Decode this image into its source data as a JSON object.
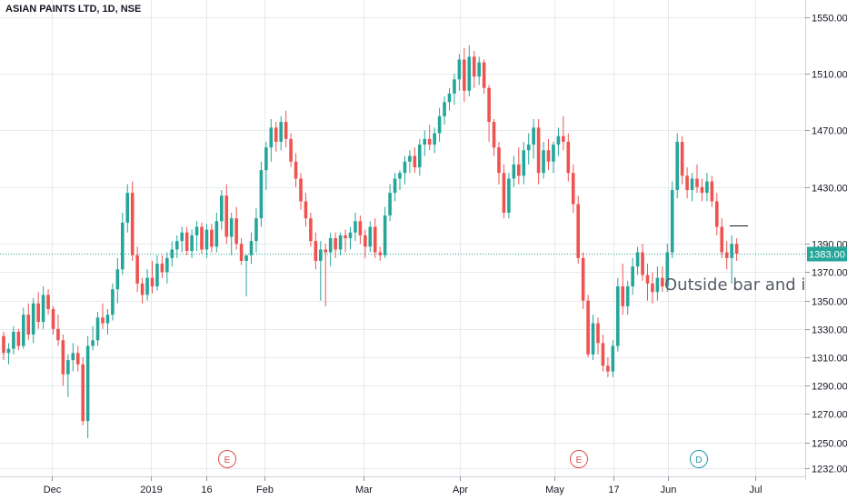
{
  "chart_data": {
    "type": "candlestick",
    "title": "ASIAN PAINTS LTD, 1D, NSE",
    "x_tick_labels": [
      "Dec",
      "2019",
      "16",
      "Feb",
      "Mar",
      "Apr",
      "May",
      "17",
      "Jun",
      "Jul"
    ],
    "y_tick_labels": [
      "1550.00",
      "1510.00",
      "1470.00",
      "1430.00",
      "1390.00",
      "1370.00",
      "1350.00",
      "1330.00",
      "1310.00",
      "1290.00",
      "1270.00",
      "1250.00",
      "1232.00"
    ],
    "ylim": [
      1226,
      1562
    ],
    "last_price": 1383.0,
    "last_price_label": "1383.00",
    "annotation": "Outside bar and inside bar",
    "event_markers": [
      {
        "label": "E",
        "type": "earnings",
        "color": "#e04a4a"
      },
      {
        "label": "E",
        "type": "earnings",
        "color": "#e04a4a"
      },
      {
        "label": "D",
        "type": "dividend",
        "color": "#1e96a8"
      }
    ],
    "colors": {
      "up": "#26a69a",
      "down": "#ef5350",
      "price_line": "#26a69a",
      "grid": "#e6e9ee"
    },
    "candles": [
      [
        1325,
        1328,
        1308,
        1313
      ],
      [
        1313,
        1320,
        1305,
        1316
      ],
      [
        1316,
        1332,
        1312,
        1328
      ],
      [
        1328,
        1330,
        1315,
        1318
      ],
      [
        1318,
        1345,
        1316,
        1340
      ],
      [
        1340,
        1348,
        1322,
        1326
      ],
      [
        1326,
        1352,
        1320,
        1348
      ],
      [
        1348,
        1356,
        1330,
        1335
      ],
      [
        1335,
        1360,
        1330,
        1354
      ],
      [
        1354,
        1358,
        1340,
        1344
      ],
      [
        1344,
        1346,
        1326,
        1330
      ],
      [
        1330,
        1340,
        1318,
        1322
      ],
      [
        1322,
        1326,
        1290,
        1298
      ],
      [
        1298,
        1312,
        1282,
        1308
      ],
      [
        1308,
        1320,
        1300,
        1313
      ],
      [
        1313,
        1318,
        1300,
        1305
      ],
      [
        1305,
        1310,
        1262,
        1265
      ],
      [
        1265,
        1325,
        1253,
        1318
      ],
      [
        1318,
        1332,
        1315,
        1322
      ],
      [
        1322,
        1342,
        1318,
        1338
      ],
      [
        1338,
        1348,
        1330,
        1334
      ],
      [
        1334,
        1344,
        1326,
        1340
      ],
      [
        1340,
        1362,
        1336,
        1358
      ],
      [
        1358,
        1380,
        1348,
        1372
      ],
      [
        1372,
        1412,
        1368,
        1405
      ],
      [
        1405,
        1432,
        1398,
        1426
      ],
      [
        1426,
        1434,
        1378,
        1382
      ],
      [
        1382,
        1388,
        1356,
        1362
      ],
      [
        1362,
        1366,
        1348,
        1354
      ],
      [
        1354,
        1372,
        1350,
        1366
      ],
      [
        1366,
        1378,
        1355,
        1360
      ],
      [
        1360,
        1382,
        1357,
        1376
      ],
      [
        1376,
        1382,
        1366,
        1370
      ],
      [
        1370,
        1384,
        1362,
        1380
      ],
      [
        1380,
        1392,
        1374,
        1386
      ],
      [
        1386,
        1396,
        1380,
        1392
      ],
      [
        1392,
        1402,
        1384,
        1398
      ],
      [
        1398,
        1402,
        1382,
        1385
      ],
      [
        1385,
        1400,
        1380,
        1396
      ],
      [
        1396,
        1406,
        1385,
        1402
      ],
      [
        1402,
        1405,
        1383,
        1386
      ],
      [
        1386,
        1404,
        1380,
        1400
      ],
      [
        1400,
        1404,
        1384,
        1388
      ],
      [
        1388,
        1412,
        1384,
        1406
      ],
      [
        1406,
        1428,
        1400,
        1424
      ],
      [
        1424,
        1432,
        1390,
        1395
      ],
      [
        1395,
        1412,
        1382,
        1408
      ],
      [
        1408,
        1416,
        1386,
        1390
      ],
      [
        1390,
        1394,
        1375,
        1378
      ],
      [
        1378,
        1382,
        1353,
        1382
      ],
      [
        1382,
        1398,
        1376,
        1392
      ],
      [
        1392,
        1415,
        1384,
        1408
      ],
      [
        1408,
        1448,
        1402,
        1442
      ],
      [
        1442,
        1462,
        1428,
        1458
      ],
      [
        1458,
        1478,
        1448,
        1472
      ],
      [
        1472,
        1476,
        1455,
        1462
      ],
      [
        1462,
        1480,
        1456,
        1476
      ],
      [
        1476,
        1484,
        1458,
        1464
      ],
      [
        1464,
        1468,
        1444,
        1448
      ],
      [
        1448,
        1454,
        1430,
        1436
      ],
      [
        1436,
        1440,
        1414,
        1420
      ],
      [
        1420,
        1426,
        1402,
        1408
      ],
      [
        1408,
        1412,
        1388,
        1392
      ],
      [
        1392,
        1398,
        1372,
        1378
      ],
      [
        1378,
        1392,
        1350,
        1386
      ],
      [
        1386,
        1390,
        1346,
        1384
      ],
      [
        1384,
        1398,
        1374,
        1394
      ],
      [
        1394,
        1398,
        1380,
        1386
      ],
      [
        1386,
        1398,
        1382,
        1396
      ],
      [
        1396,
        1400,
        1384,
        1394
      ],
      [
        1394,
        1402,
        1386,
        1398
      ],
      [
        1398,
        1412,
        1392,
        1406
      ],
      [
        1406,
        1410,
        1390,
        1396
      ],
      [
        1396,
        1400,
        1380,
        1388
      ],
      [
        1388,
        1406,
        1384,
        1402
      ],
      [
        1402,
        1408,
        1380,
        1384
      ],
      [
        1384,
        1388,
        1378,
        1382
      ],
      [
        1382,
        1416,
        1380,
        1410
      ],
      [
        1410,
        1432,
        1406,
        1426
      ],
      [
        1426,
        1440,
        1420,
        1436
      ],
      [
        1436,
        1442,
        1428,
        1440
      ],
      [
        1440,
        1452,
        1432,
        1448
      ],
      [
        1448,
        1456,
        1440,
        1452
      ],
      [
        1452,
        1458,
        1440,
        1444
      ],
      [
        1444,
        1464,
        1438,
        1460
      ],
      [
        1460,
        1470,
        1452,
        1464
      ],
      [
        1464,
        1474,
        1456,
        1460
      ],
      [
        1460,
        1472,
        1454,
        1468
      ],
      [
        1468,
        1486,
        1462,
        1480
      ],
      [
        1480,
        1494,
        1474,
        1490
      ],
      [
        1490,
        1500,
        1484,
        1496
      ],
      [
        1496,
        1510,
        1488,
        1506
      ],
      [
        1506,
        1524,
        1498,
        1520
      ],
      [
        1520,
        1528,
        1490,
        1498
      ],
      [
        1498,
        1530,
        1494,
        1522
      ],
      [
        1522,
        1526,
        1500,
        1508
      ],
      [
        1508,
        1522,
        1502,
        1518
      ],
      [
        1518,
        1520,
        1496,
        1500
      ],
      [
        1500,
        1502,
        1462,
        1476
      ],
      [
        1476,
        1478,
        1452,
        1458
      ],
      [
        1458,
        1462,
        1432,
        1440
      ],
      [
        1440,
        1446,
        1408,
        1412
      ],
      [
        1412,
        1440,
        1408,
        1436
      ],
      [
        1436,
        1452,
        1430,
        1446
      ],
      [
        1446,
        1458,
        1432,
        1438
      ],
      [
        1438,
        1462,
        1432,
        1456
      ],
      [
        1456,
        1468,
        1446,
        1460
      ],
      [
        1460,
        1478,
        1450,
        1472
      ],
      [
        1472,
        1478,
        1432,
        1440
      ],
      [
        1440,
        1462,
        1436,
        1456
      ],
      [
        1456,
        1464,
        1442,
        1448
      ],
      [
        1448,
        1462,
        1440,
        1460
      ],
      [
        1460,
        1472,
        1452,
        1466
      ],
      [
        1466,
        1480,
        1456,
        1462
      ],
      [
        1462,
        1468,
        1434,
        1440
      ],
      [
        1440,
        1446,
        1412,
        1418
      ],
      [
        1418,
        1424,
        1376,
        1380
      ],
      [
        1380,
        1384,
        1344,
        1350
      ],
      [
        1350,
        1354,
        1310,
        1312
      ],
      [
        1312,
        1340,
        1308,
        1334
      ],
      [
        1334,
        1338,
        1312,
        1320
      ],
      [
        1320,
        1326,
        1300,
        1304
      ],
      [
        1304,
        1310,
        1296,
        1300
      ],
      [
        1300,
        1322,
        1296,
        1318
      ],
      [
        1318,
        1366,
        1314,
        1360
      ],
      [
        1360,
        1376,
        1340,
        1346
      ],
      [
        1346,
        1364,
        1340,
        1360
      ],
      [
        1360,
        1380,
        1354,
        1374
      ],
      [
        1374,
        1388,
        1368,
        1384
      ],
      [
        1384,
        1390,
        1364,
        1368
      ],
      [
        1368,
        1376,
        1350,
        1362
      ],
      [
        1362,
        1370,
        1348,
        1356
      ],
      [
        1356,
        1374,
        1350,
        1366
      ],
      [
        1366,
        1374,
        1356,
        1360
      ],
      [
        1360,
        1390,
        1356,
        1384
      ],
      [
        1384,
        1434,
        1380,
        1428
      ],
      [
        1428,
        1468,
        1422,
        1462
      ],
      [
        1462,
        1466,
        1432,
        1438
      ],
      [
        1438,
        1444,
        1422,
        1428
      ],
      [
        1428,
        1440,
        1420,
        1436
      ],
      [
        1436,
        1446,
        1426,
        1430
      ],
      [
        1430,
        1436,
        1420,
        1426
      ],
      [
        1426,
        1440,
        1420,
        1434
      ],
      [
        1434,
        1438,
        1416,
        1420
      ],
      [
        1420,
        1426,
        1396,
        1402
      ],
      [
        1402,
        1408,
        1380,
        1384
      ],
      [
        1384,
        1392,
        1372,
        1380
      ],
      [
        1380,
        1396,
        1362,
        1390
      ],
      [
        1390,
        1394,
        1378,
        1383
      ]
    ]
  }
}
